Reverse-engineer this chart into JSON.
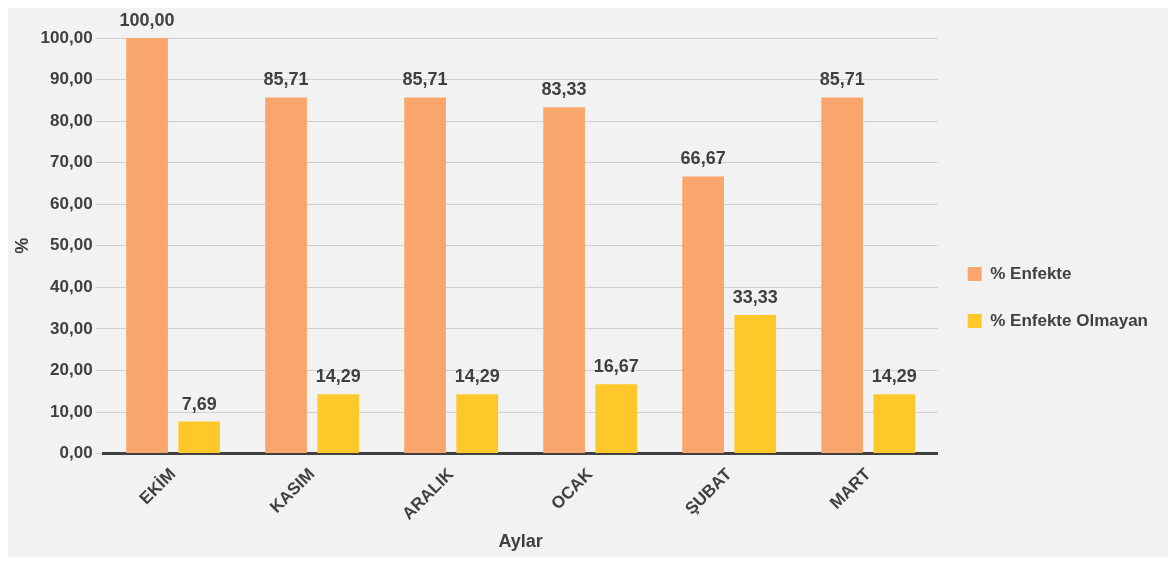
{
  "chart_data": {
    "type": "bar",
    "xlabel": "Aylar",
    "ylabel": "%",
    "categories": [
      "EKİM",
      "KASIM",
      "ARALIK",
      "OCAK",
      "ŞUBAT",
      "MART"
    ],
    "series": [
      {
        "name": "% Enfekte",
        "color": "#f9a66c",
        "values": [
          100,
          85.71,
          85.71,
          83.33,
          66.67,
          85.71
        ],
        "value_labels": [
          "100,00",
          "85,71",
          "85,71",
          "83,33",
          "66,67",
          "85,71"
        ]
      },
      {
        "name": "% Enfekte Olmayan",
        "color": "#ffc82a",
        "values": [
          7.69,
          14.29,
          14.29,
          16.67,
          33.33,
          14.29
        ],
        "value_labels": [
          "7,69",
          "14,29",
          "14,29",
          "16,67",
          "33,33",
          "14,29"
        ]
      }
    ],
    "ylim": [
      0,
      100
    ],
    "yticks": [
      {
        "value": 0,
        "label": "0,00"
      },
      {
        "value": 10,
        "label": "10,00"
      },
      {
        "value": 20,
        "label": "20,00"
      },
      {
        "value": 30,
        "label": "30,00"
      },
      {
        "value": 40,
        "label": "40,00"
      },
      {
        "value": 50,
        "label": "50,00"
      },
      {
        "value": 60,
        "label": "60,00"
      },
      {
        "value": 70,
        "label": "70,00"
      },
      {
        "value": 80,
        "label": "80,00"
      },
      {
        "value": 90,
        "label": "90,00"
      },
      {
        "value": 100,
        "label": "100,00"
      }
    ],
    "grid": "y",
    "legend": "right"
  }
}
